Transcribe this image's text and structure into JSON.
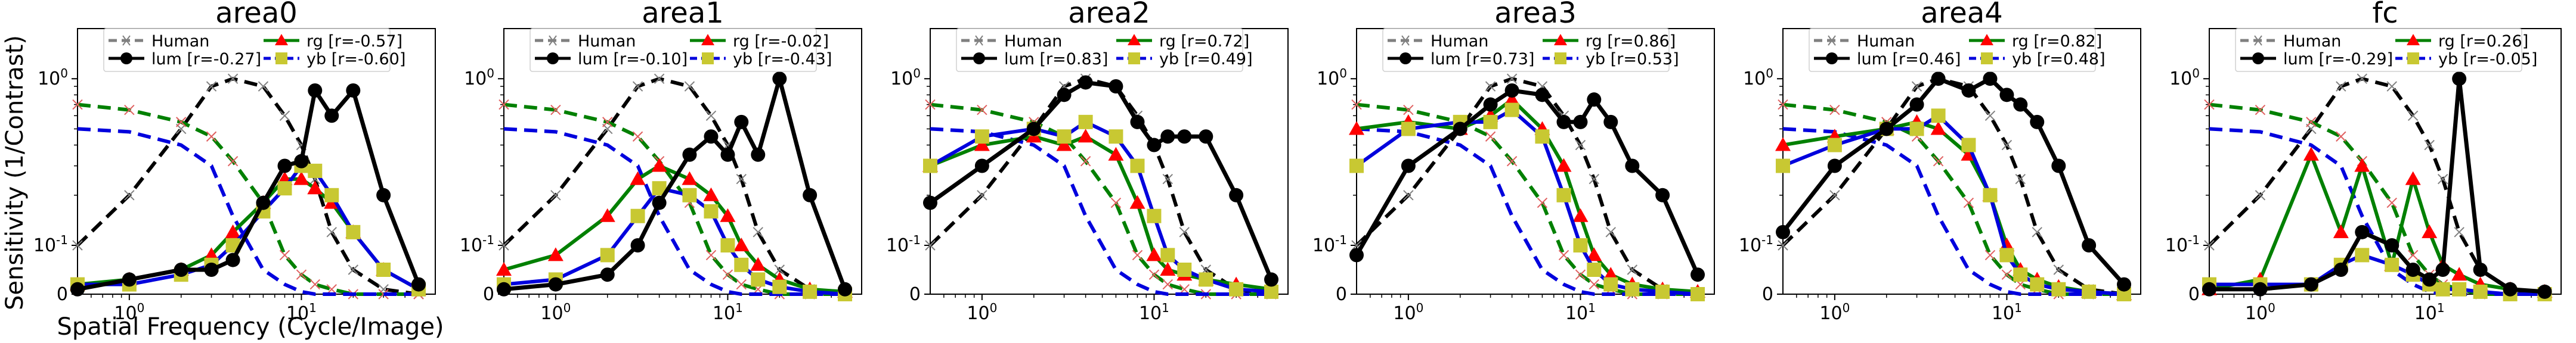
{
  "figure": {
    "ylabel": "Sensitivity (1/Contrast)",
    "xlabel": "Spatial Frequency (Cycle/Image)"
  },
  "legend_labels": {
    "human": "Human",
    "lum": "lum",
    "rg": "rg",
    "yb": "yb"
  },
  "series_colors": {
    "human": "#808080",
    "lum": "#000000",
    "rg": "#008000",
    "yb": "#0000dd",
    "rg_marker": "#ff0000",
    "yb_marker": "#c8c832"
  },
  "tick_labels": {
    "x": [
      "10^0",
      "10^1"
    ],
    "y": [
      "0",
      "10^-1",
      "10^0"
    ]
  },
  "chart_data": [
    {
      "type": "line",
      "title": "area0",
      "x_scale": "log",
      "y_scale": "symlog",
      "xlim": [
        0.5,
        60
      ],
      "ylim": [
        0,
        2
      ],
      "x": [
        0.5,
        1,
        2,
        3,
        4,
        6,
        8,
        10,
        12,
        15,
        20,
        30,
        48
      ],
      "human": {
        "lum": [
          0.1,
          0.2,
          0.5,
          0.9,
          1.0,
          0.9,
          0.6,
          0.4,
          0.25,
          0.12,
          0.05,
          0.01,
          0.0
        ],
        "rg": [
          0.7,
          0.65,
          0.55,
          0.45,
          0.32,
          0.18,
          0.08,
          0.04,
          0.02,
          0.01,
          0.0,
          0.0,
          0.0
        ]
      },
      "human_cone": {
        "lum": [
          0.5,
          0.48,
          0.4,
          0.3,
          0.15,
          0.05,
          0.02,
          0.005,
          0.0,
          0.0,
          0.0,
          0.0,
          0.0
        ]
      },
      "series": [
        {
          "name": "lum",
          "r": "-0.27",
          "values": [
            0.01,
            0.03,
            0.05,
            0.05,
            0.07,
            0.18,
            0.3,
            0.32,
            0.85,
            0.6,
            0.85,
            0.2,
            0.02
          ]
        },
        {
          "name": "rg",
          "r": "-0.57",
          "values": [
            0.02,
            0.03,
            0.05,
            0.08,
            0.12,
            0.18,
            0.25,
            0.25,
            0.22,
            0.18,
            0.12,
            0.05,
            0.01
          ]
        },
        {
          "name": "yb",
          "r": "-0.60",
          "values": [
            0.02,
            0.02,
            0.04,
            0.06,
            0.1,
            0.16,
            0.22,
            0.3,
            0.28,
            0.2,
            0.12,
            0.05,
            0.01
          ]
        }
      ]
    },
    {
      "type": "line",
      "title": "area1",
      "x_scale": "log",
      "y_scale": "symlog",
      "xlim": [
        0.5,
        60
      ],
      "ylim": [
        0,
        2
      ],
      "x": [
        0.5,
        1,
        2,
        3,
        4,
        6,
        8,
        10,
        12,
        15,
        20,
        30,
        48
      ],
      "human": {
        "lum": [
          0.1,
          0.2,
          0.5,
          0.9,
          1.0,
          0.9,
          0.6,
          0.4,
          0.25,
          0.12,
          0.05,
          0.01,
          0.0
        ],
        "rg": [
          0.7,
          0.65,
          0.55,
          0.45,
          0.32,
          0.18,
          0.08,
          0.04,
          0.02,
          0.01,
          0.0,
          0.0,
          0.0
        ]
      },
      "human_cone": {
        "lum": [
          0.5,
          0.48,
          0.4,
          0.3,
          0.15,
          0.05,
          0.02,
          0.005,
          0.0,
          0.0,
          0.0,
          0.0,
          0.0
        ]
      },
      "series": [
        {
          "name": "lum",
          "r": "-0.10",
          "values": [
            0.01,
            0.02,
            0.04,
            0.1,
            0.18,
            0.35,
            0.45,
            0.35,
            0.55,
            0.35,
            1.0,
            0.2,
            0.01
          ]
        },
        {
          "name": "rg",
          "r": "-0.02",
          "values": [
            0.05,
            0.08,
            0.15,
            0.25,
            0.3,
            0.25,
            0.2,
            0.15,
            0.1,
            0.06,
            0.03,
            0.01,
            0.005
          ]
        },
        {
          "name": "yb",
          "r": "-0.43",
          "values": [
            0.02,
            0.03,
            0.08,
            0.15,
            0.22,
            0.2,
            0.16,
            0.1,
            0.06,
            0.03,
            0.015,
            0.005,
            0.0
          ]
        }
      ]
    },
    {
      "type": "line",
      "title": "area2",
      "x_scale": "log",
      "y_scale": "symlog",
      "xlim": [
        0.5,
        60
      ],
      "ylim": [
        0,
        2
      ],
      "x": [
        0.5,
        1,
        2,
        3,
        4,
        6,
        8,
        10,
        12,
        15,
        20,
        30,
        48
      ],
      "human": {
        "lum": [
          0.1,
          0.2,
          0.5,
          0.9,
          1.0,
          0.9,
          0.6,
          0.4,
          0.25,
          0.12,
          0.05,
          0.01,
          0.0
        ],
        "rg": [
          0.7,
          0.65,
          0.55,
          0.45,
          0.32,
          0.18,
          0.08,
          0.04,
          0.02,
          0.01,
          0.0,
          0.0,
          0.0
        ]
      },
      "human_cone": {
        "lum": [
          0.5,
          0.48,
          0.4,
          0.3,
          0.15,
          0.05,
          0.02,
          0.005,
          0.0,
          0.0,
          0.0,
          0.0,
          0.0
        ]
      },
      "series": [
        {
          "name": "lum",
          "r": "0.83",
          "values": [
            0.18,
            0.3,
            0.5,
            0.8,
            0.95,
            0.9,
            0.55,
            0.4,
            0.45,
            0.45,
            0.45,
            0.2,
            0.03
          ]
        },
        {
          "name": "rg",
          "r": "0.72",
          "values": [
            0.3,
            0.4,
            0.45,
            0.4,
            0.45,
            0.35,
            0.18,
            0.08,
            0.05,
            0.04,
            0.03,
            0.02,
            0.01
          ]
        },
        {
          "name": "yb",
          "r": "0.49",
          "values": [
            0.3,
            0.45,
            0.5,
            0.45,
            0.55,
            0.45,
            0.3,
            0.15,
            0.08,
            0.05,
            0.03,
            0.01,
            0.005
          ]
        }
      ]
    },
    {
      "type": "line",
      "title": "area3",
      "x_scale": "log",
      "y_scale": "symlog",
      "xlim": [
        0.5,
        60
      ],
      "ylim": [
        0,
        2
      ],
      "x": [
        0.5,
        1,
        2,
        3,
        4,
        6,
        8,
        10,
        12,
        15,
        20,
        30,
        48
      ],
      "human": {
        "lum": [
          0.1,
          0.2,
          0.5,
          0.9,
          1.0,
          0.9,
          0.6,
          0.4,
          0.25,
          0.12,
          0.05,
          0.01,
          0.0
        ],
        "rg": [
          0.7,
          0.65,
          0.55,
          0.45,
          0.32,
          0.18,
          0.08,
          0.04,
          0.02,
          0.01,
          0.0,
          0.0,
          0.0
        ]
      },
      "human_cone": {
        "lum": [
          0.5,
          0.48,
          0.4,
          0.3,
          0.15,
          0.05,
          0.02,
          0.005,
          0.0,
          0.0,
          0.0,
          0.0,
          0.0
        ]
      },
      "series": [
        {
          "name": "lum",
          "r": "0.73",
          "values": [
            0.08,
            0.3,
            0.5,
            0.7,
            0.85,
            0.8,
            0.55,
            0.55,
            0.75,
            0.55,
            0.3,
            0.2,
            0.04
          ]
        },
        {
          "name": "rg",
          "r": "0.86",
          "values": [
            0.5,
            0.55,
            0.5,
            0.6,
            0.75,
            0.5,
            0.3,
            0.15,
            0.08,
            0.04,
            0.02,
            0.01,
            0.005
          ]
        },
        {
          "name": "yb",
          "r": "0.53",
          "values": [
            0.3,
            0.5,
            0.55,
            0.55,
            0.65,
            0.45,
            0.2,
            0.1,
            0.05,
            0.02,
            0.01,
            0.005,
            0.0
          ]
        }
      ]
    },
    {
      "type": "line",
      "title": "area4",
      "x_scale": "log",
      "y_scale": "symlog",
      "xlim": [
        0.5,
        60
      ],
      "ylim": [
        0,
        2
      ],
      "x": [
        0.5,
        1,
        2,
        3,
        4,
        6,
        8,
        10,
        12,
        15,
        20,
        30,
        48
      ],
      "human": {
        "lum": [
          0.1,
          0.2,
          0.5,
          0.9,
          1.0,
          0.9,
          0.6,
          0.4,
          0.25,
          0.12,
          0.05,
          0.01,
          0.0
        ],
        "rg": [
          0.7,
          0.65,
          0.55,
          0.45,
          0.32,
          0.18,
          0.08,
          0.04,
          0.02,
          0.01,
          0.0,
          0.0,
          0.0
        ]
      },
      "human_cone": {
        "lum": [
          0.5,
          0.48,
          0.4,
          0.3,
          0.15,
          0.05,
          0.02,
          0.005,
          0.0,
          0.0,
          0.0,
          0.0,
          0.0
        ]
      },
      "series": [
        {
          "name": "lum",
          "r": "0.46",
          "values": [
            0.12,
            0.3,
            0.5,
            0.7,
            1.0,
            0.85,
            1.0,
            0.8,
            0.7,
            0.55,
            0.3,
            0.1,
            0.02
          ]
        },
        {
          "name": "rg",
          "r": "0.82",
          "values": [
            0.4,
            0.45,
            0.5,
            0.55,
            0.5,
            0.35,
            0.2,
            0.1,
            0.05,
            0.03,
            0.015,
            0.005,
            0.0
          ]
        },
        {
          "name": "yb",
          "r": "0.48",
          "values": [
            0.3,
            0.4,
            0.5,
            0.5,
            0.6,
            0.4,
            0.2,
            0.08,
            0.04,
            0.02,
            0.01,
            0.005,
            0.0
          ]
        }
      ]
    },
    {
      "type": "line",
      "title": "fc",
      "x_scale": "log",
      "y_scale": "symlog",
      "xlim": [
        0.5,
        60
      ],
      "ylim": [
        0,
        2
      ],
      "x": [
        0.5,
        1,
        2,
        3,
        4,
        6,
        8,
        10,
        12,
        15,
        20,
        30,
        48
      ],
      "human": {
        "lum": [
          0.1,
          0.2,
          0.5,
          0.9,
          1.0,
          0.9,
          0.6,
          0.4,
          0.25,
          0.12,
          0.05,
          0.01,
          0.0
        ],
        "rg": [
          0.7,
          0.65,
          0.55,
          0.45,
          0.32,
          0.18,
          0.08,
          0.04,
          0.02,
          0.01,
          0.0,
          0.0,
          0.0
        ]
      },
      "human_cone": {
        "lum": [
          0.5,
          0.48,
          0.4,
          0.3,
          0.15,
          0.05,
          0.02,
          0.005,
          0.0,
          0.0,
          0.0,
          0.0,
          0.0
        ]
      },
      "series": [
        {
          "name": "lum",
          "r": "-0.29",
          "values": [
            0.01,
            0.01,
            0.02,
            0.05,
            0.12,
            0.1,
            0.05,
            0.03,
            0.05,
            1.0,
            0.05,
            0.01,
            0.005
          ]
        },
        {
          "name": "rg",
          "r": "0.26",
          "values": [
            0.01,
            0.03,
            0.35,
            0.12,
            0.3,
            0.06,
            0.25,
            0.12,
            0.06,
            0.04,
            0.02,
            0.01,
            0.005
          ]
        },
        {
          "name": "yb",
          "r": "-0.05",
          "values": [
            0.02,
            0.02,
            0.02,
            0.06,
            0.08,
            0.06,
            0.04,
            0.02,
            0.01,
            0.01,
            0.005,
            0.0,
            0.0
          ]
        }
      ]
    }
  ]
}
